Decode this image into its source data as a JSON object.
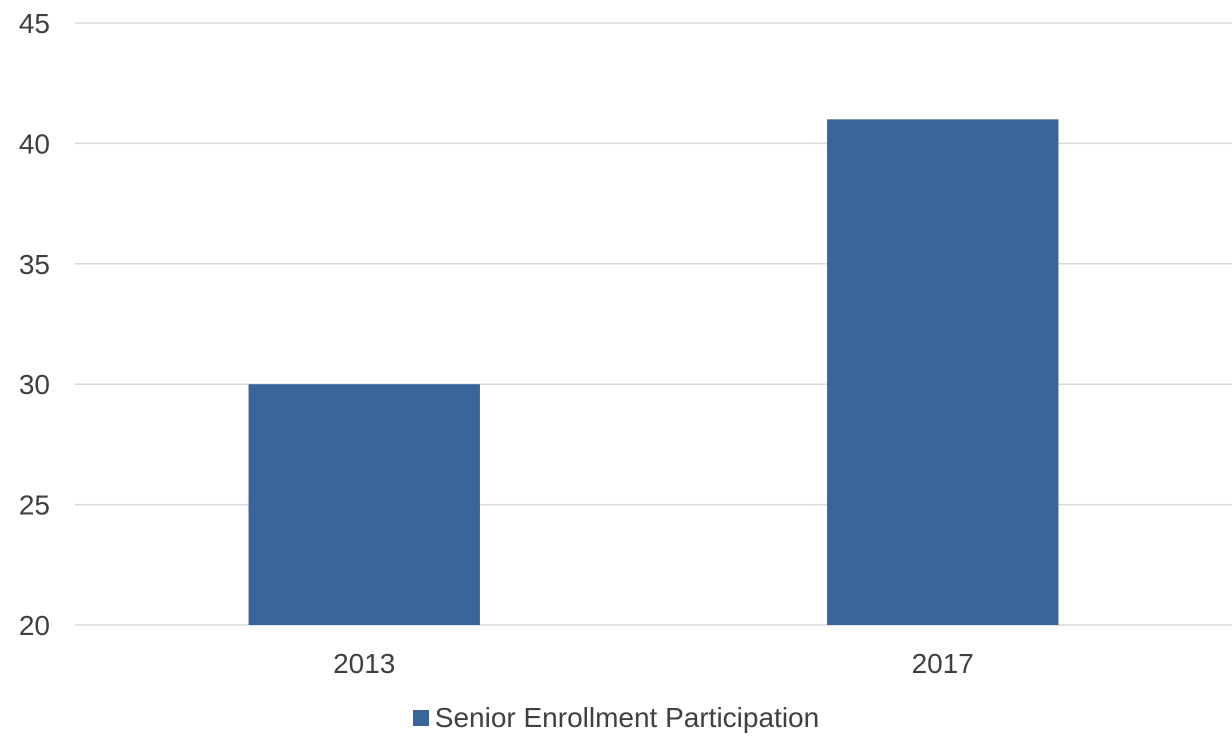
{
  "chart_data": {
    "type": "bar",
    "categories": [
      "2013",
      "2017"
    ],
    "series": [
      {
        "name": "Senior Enrollment Participation",
        "values": [
          30,
          41
        ],
        "color": "#3a659b"
      }
    ],
    "ylim": [
      20,
      45
    ],
    "yticks": [
      20,
      25,
      30,
      35,
      40,
      45
    ],
    "grid": true,
    "legend_position": "bottom-center",
    "title": "",
    "xlabel": "",
    "ylabel": ""
  }
}
